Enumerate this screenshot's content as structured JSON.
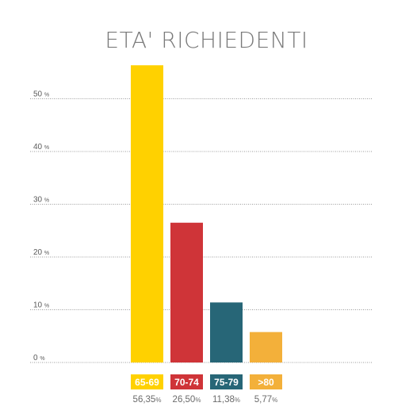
{
  "chart_data": {
    "type": "bar",
    "title": "ETA' RICHIEDENTI",
    "categories": [
      "65-69",
      "70-74",
      "75-79",
      ">80"
    ],
    "values": [
      56.35,
      26.5,
      11.38,
      5.77
    ],
    "value_labels": [
      "56,35",
      "26,50",
      "11,38",
      "5,77"
    ],
    "value_unit": "%",
    "colors": [
      "#ffd100",
      "#cf3438",
      "#276677",
      "#f3b03a"
    ],
    "yticks": [
      0,
      10,
      20,
      30,
      40,
      50
    ],
    "ytick_labels": [
      "0",
      "10",
      "20",
      "30",
      "40",
      "50"
    ],
    "ytick_unit": "%",
    "ylim": [
      0,
      60
    ],
    "grid": true,
    "xlabel": "",
    "ylabel": ""
  }
}
